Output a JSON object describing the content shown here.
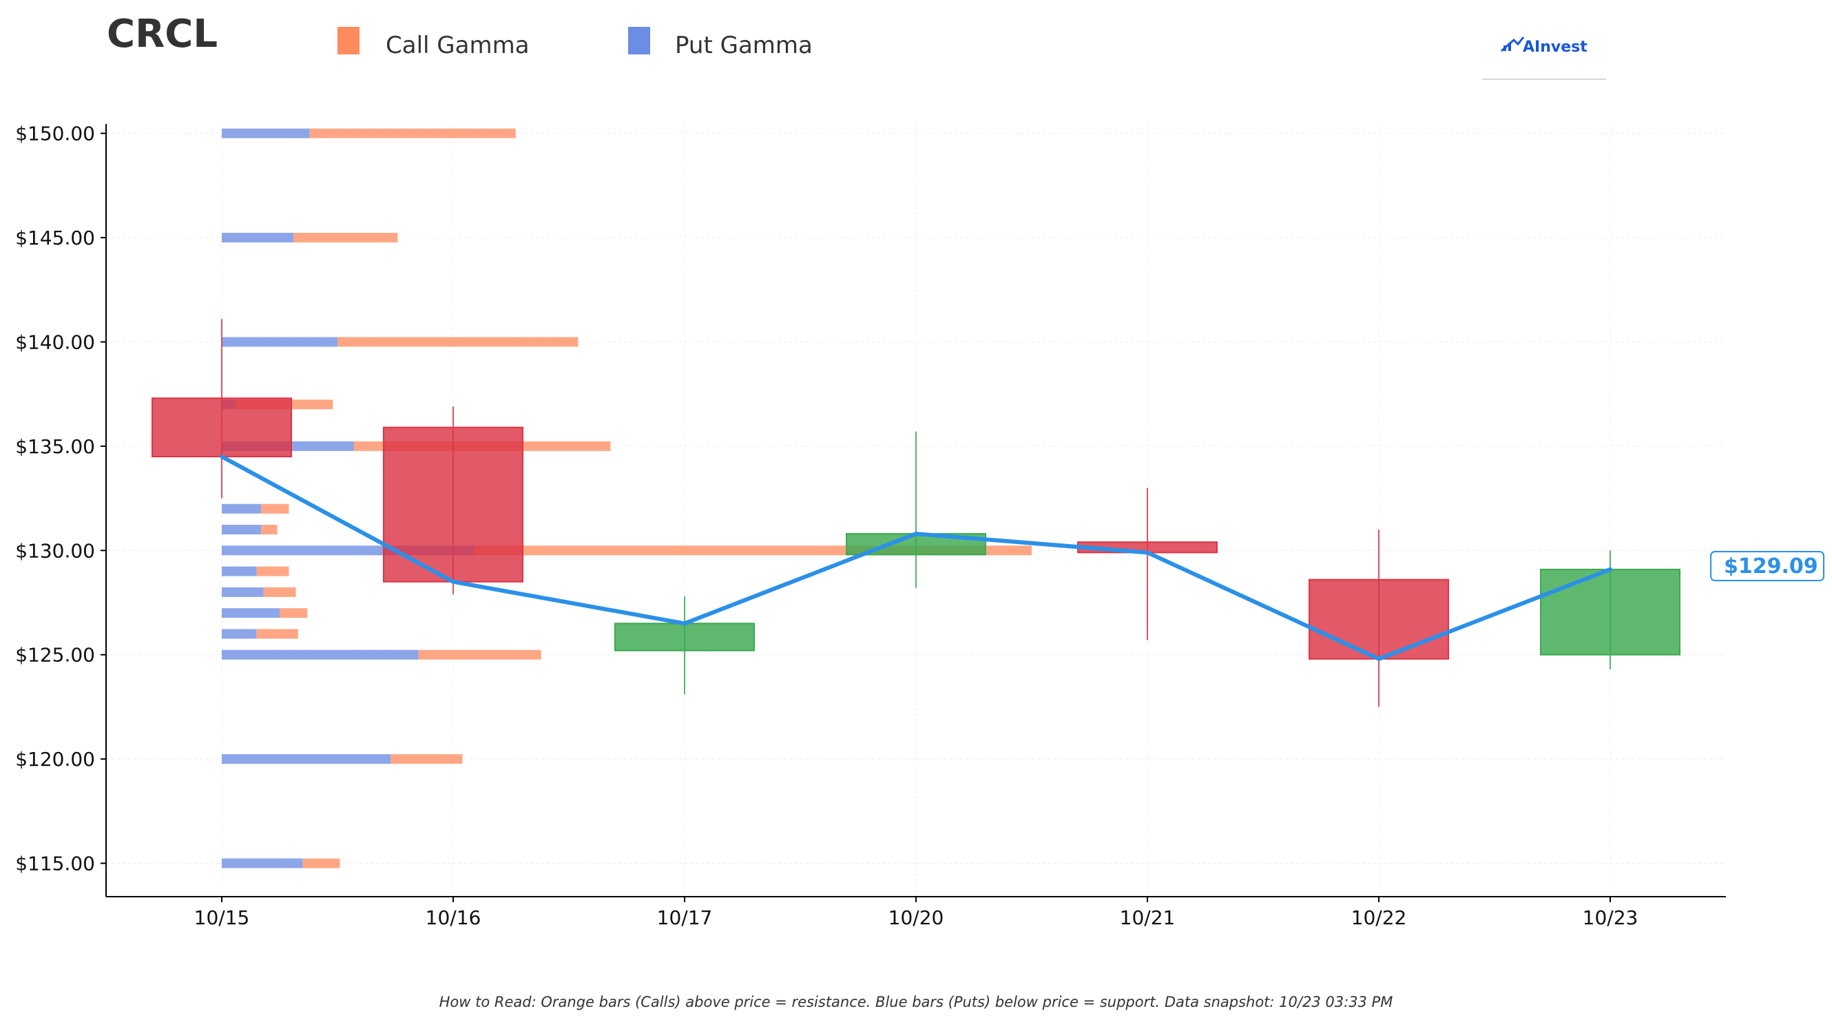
{
  "ticker": "CRCL",
  "legend": {
    "call": {
      "label": "Call Gamma",
      "color": "#ff8a5c"
    },
    "put": {
      "label": "Put Gamma",
      "color": "#6b8de3"
    }
  },
  "logo": {
    "text": "AInvest",
    "icon": "chart-arrow-icon"
  },
  "footer": "How to Read: Orange bars (Calls) above price = resistance. Blue bars (Puts) below price = support. Data snapshot: 10/23 03:33 PM",
  "price_label": "$129.09",
  "colors": {
    "up": "#3aaa4f",
    "down": "#dc3545",
    "line": "#2b90e8"
  },
  "chart_data": {
    "type": "candlestick",
    "categories": [
      "10/15",
      "10/16",
      "10/17",
      "10/20",
      "10/21",
      "10/22",
      "10/23"
    ],
    "y_ticks": [
      "$115.00",
      "$120.00",
      "$125.00",
      "$130.00",
      "$135.00",
      "$140.00",
      "$145.00",
      "$150.00"
    ],
    "y_tick_values": [
      115,
      120,
      125,
      130,
      135,
      140,
      145,
      150
    ],
    "ylim": [
      113.4,
      150.45
    ],
    "grid": true,
    "candles": [
      {
        "date": "10/15",
        "open": 137.3,
        "high": 141.1,
        "low": 132.5,
        "close": 134.5
      },
      {
        "date": "10/16",
        "open": 135.9,
        "high": 136.9,
        "low": 127.9,
        "close": 128.5
      },
      {
        "date": "10/17",
        "open": 125.2,
        "high": 127.8,
        "low": 123.1,
        "close": 126.5
      },
      {
        "date": "10/20",
        "open": 129.8,
        "high": 135.7,
        "low": 128.2,
        "close": 130.8
      },
      {
        "date": "10/21",
        "open": 130.4,
        "high": 133.0,
        "low": 125.7,
        "close": 129.9
      },
      {
        "date": "10/22",
        "open": 128.6,
        "high": 131.0,
        "low": 122.5,
        "close": 124.8
      },
      {
        "date": "10/23",
        "open": 125.0,
        "high": 130.0,
        "low": 124.3,
        "close": 129.09
      }
    ],
    "close_line": [
      134.5,
      128.5,
      126.5,
      130.8,
      129.9,
      124.8,
      129.09
    ],
    "gamma_unit": "category widths from 10/15",
    "gamma": [
      {
        "strike": 150,
        "put": 0.38,
        "call": 0.89
      },
      {
        "strike": 145,
        "put": 0.31,
        "call": 0.45
      },
      {
        "strike": 140,
        "put": 0.5,
        "call": 1.04
      },
      {
        "strike": 137,
        "put": 0.06,
        "call": 0.42
      },
      {
        "strike": 135,
        "put": 0.57,
        "call": 1.11
      },
      {
        "strike": 132,
        "put": 0.17,
        "call": 0.12
      },
      {
        "strike": 131,
        "put": 0.17,
        "call": 0.07
      },
      {
        "strike": 130,
        "put": 1.09,
        "call": 2.41
      },
      {
        "strike": 129,
        "put": 0.15,
        "call": 0.14
      },
      {
        "strike": 128,
        "put": 0.18,
        "call": 0.14
      },
      {
        "strike": 127,
        "put": 0.25,
        "call": 0.12
      },
      {
        "strike": 126,
        "put": 0.15,
        "call": 0.18
      },
      {
        "strike": 125,
        "put": 0.85,
        "call": 0.53
      },
      {
        "strike": 120,
        "put": 0.73,
        "call": 0.31
      },
      {
        "strike": 115,
        "put": 0.35,
        "call": 0.16
      }
    ]
  }
}
